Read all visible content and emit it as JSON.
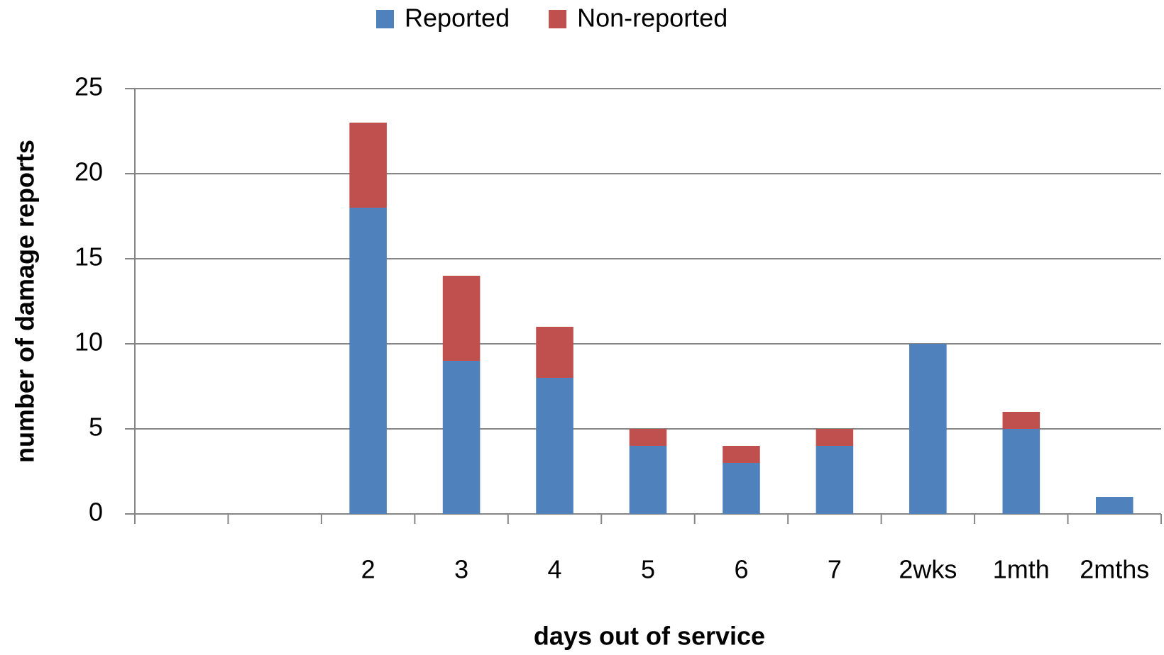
{
  "chart_data": {
    "type": "stacked_bar",
    "x_label": "days out of service",
    "y_label": "number of damage reports",
    "categories": [
      null,
      null,
      "2",
      "3",
      "4",
      "5",
      "6",
      "7",
      "2wks",
      "1mth",
      "2mths"
    ],
    "series": [
      {
        "name": "Reported",
        "color": "#4f81bd",
        "values": [
          null,
          null,
          18,
          9,
          8,
          4,
          3,
          4,
          10,
          5,
          1
        ]
      },
      {
        "name": "Non-reported",
        "color": "#c0504d",
        "values": [
          null,
          null,
          5,
          5,
          3,
          1,
          1,
          1,
          0,
          1,
          0
        ]
      }
    ],
    "ylim": [
      0,
      25
    ],
    "yticks": [
      0,
      5,
      10,
      15,
      20,
      25
    ],
    "grid": true,
    "legend": "top"
  }
}
